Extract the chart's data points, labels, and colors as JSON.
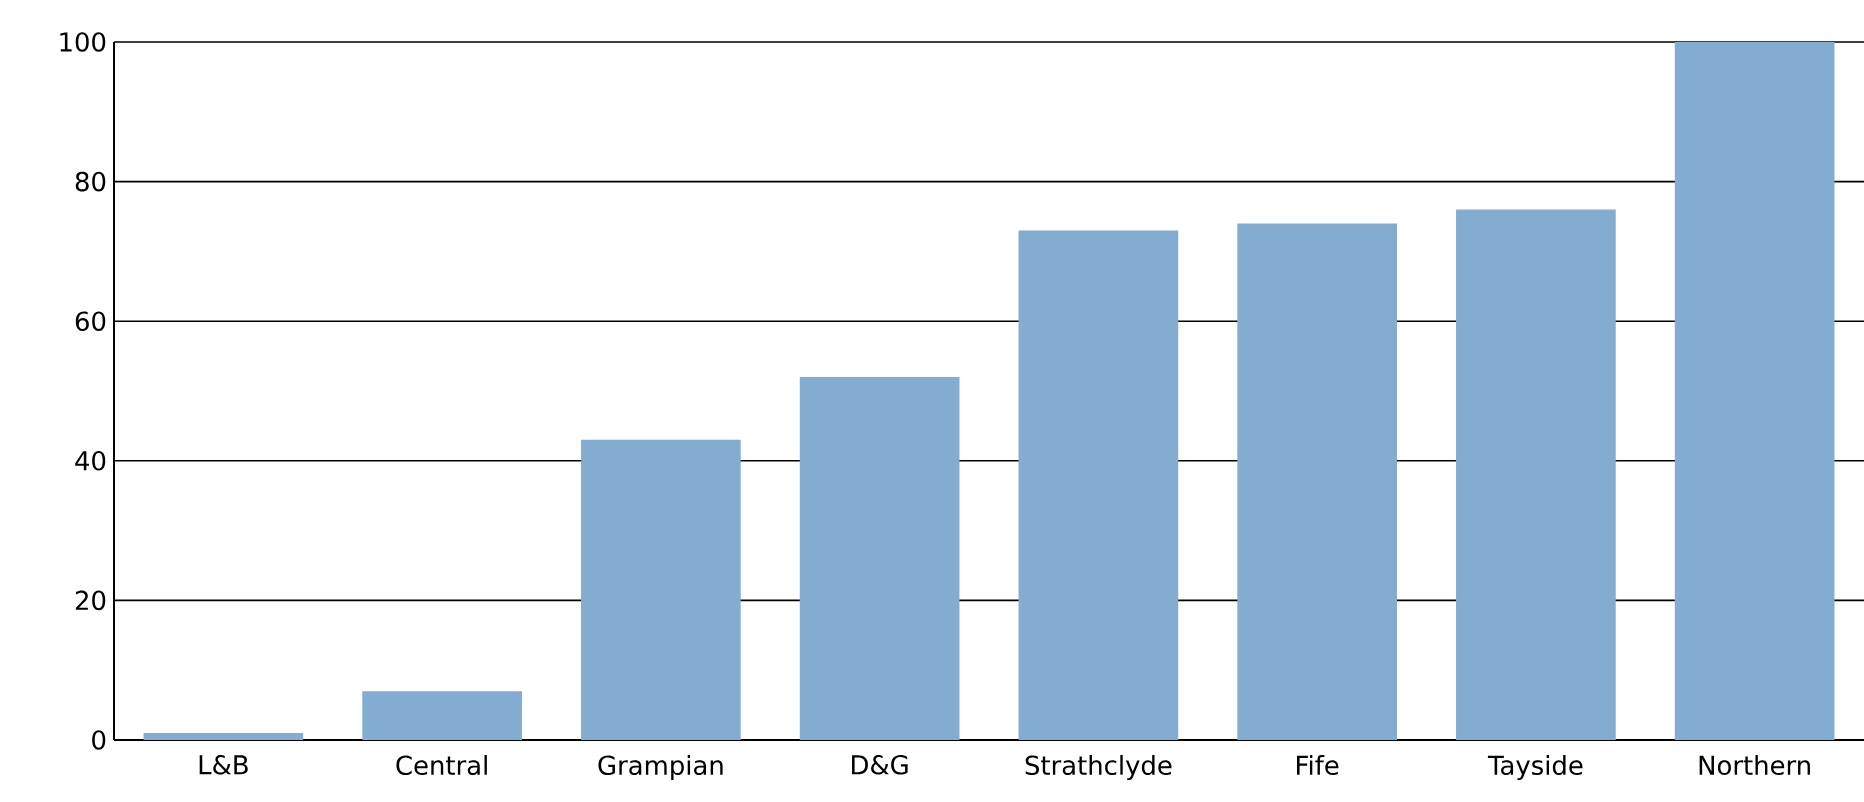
{
  "chart_data": {
    "type": "bar",
    "categories": [
      "L&B",
      "Central",
      "Grampian",
      "D&G",
      "Strathclyde",
      "Fife",
      "Tayside",
      "Northern"
    ],
    "values": [
      1,
      7,
      43,
      52,
      73,
      74,
      76,
      100
    ],
    "color": "#82acd0",
    "ylim": [
      0,
      100
    ],
    "yticks": [
      0,
      20,
      40,
      60,
      80,
      100
    ],
    "grid": "y"
  }
}
